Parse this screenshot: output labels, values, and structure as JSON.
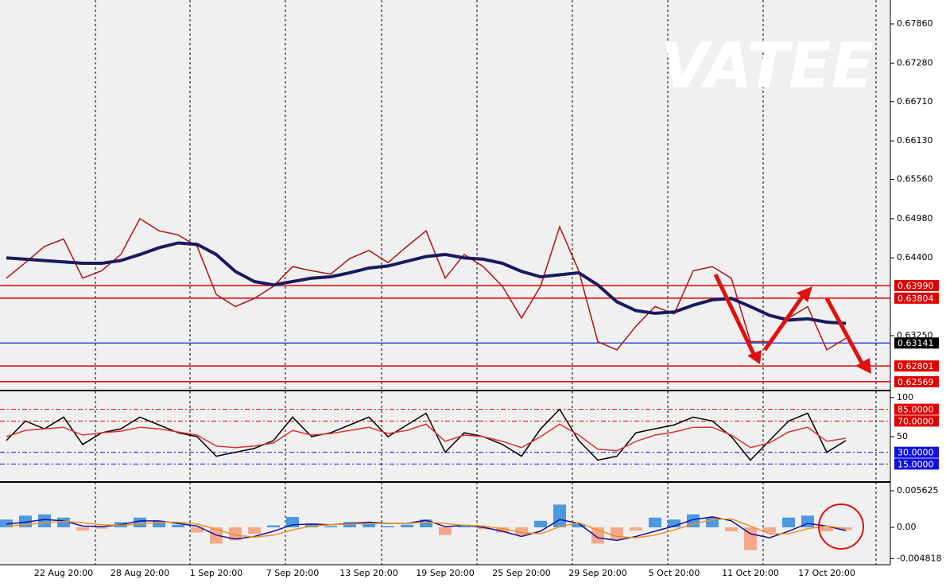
{
  "watermark": "VATEE",
  "chart_data": [
    {
      "type": "line",
      "ylim": [
        0.6245,
        0.68213
      ],
      "yticks": [
        {
          "value": 0.6786,
          "label": "0.67860"
        },
        {
          "value": 0.6728,
          "label": "0.67280"
        },
        {
          "value": 0.6671,
          "label": "0.66710"
        },
        {
          "value": 0.6613,
          "label": "0.66130"
        },
        {
          "value": 0.6556,
          "label": "0.65560"
        },
        {
          "value": 0.6498,
          "label": "0.64980"
        },
        {
          "value": 0.644,
          "label": "0.64400"
        },
        {
          "value": 0.6325,
          "label": "0.63250"
        }
      ],
      "levels": [
        {
          "value": 0.6399,
          "label": "0.63990",
          "color": "#e00000"
        },
        {
          "value": 0.63804,
          "label": "0.63804",
          "color": "#e00000"
        },
        {
          "value": 0.63141,
          "label": "0.63141",
          "color": "#3050d0"
        },
        {
          "value": 0.62801,
          "label": "0.62801",
          "color": "#e00000"
        },
        {
          "value": 0.62569,
          "label": "0.62569",
          "color": "#e00000"
        }
      ],
      "series": [
        {
          "color": "#b01010",
          "values": [
            0.641,
            0.6433,
            0.6457,
            0.6468,
            0.641,
            0.6421,
            0.6445,
            0.6498,
            0.648,
            0.6474,
            0.6457,
            0.6386,
            0.6368,
            0.638,
            0.6398,
            0.6427,
            0.6421,
            0.6416,
            0.6439,
            0.6451,
            0.6433,
            0.6457,
            0.648,
            0.641,
            0.6445,
            0.6427,
            0.6398,
            0.6351,
            0.6398,
            0.6486,
            0.6421,
            0.6316,
            0.6304,
            0.6339,
            0.6368,
            0.6357,
            0.6421,
            0.6427,
            0.641,
            0.6316,
            0.6316,
            0.6351,
            0.6368,
            0.6304,
            0.6321
          ]
        },
        {
          "color": "#1a1a60",
          "values": [
            0.644,
            0.6438,
            0.6436,
            0.6434,
            0.6432,
            0.6432,
            0.6436,
            0.6445,
            0.6455,
            0.6462,
            0.646,
            0.6445,
            0.642,
            0.6405,
            0.64,
            0.6405,
            0.641,
            0.6412,
            0.6418,
            0.6425,
            0.6428,
            0.6435,
            0.6442,
            0.6445,
            0.644,
            0.6438,
            0.6432,
            0.642,
            0.6412,
            0.6415,
            0.6418,
            0.64,
            0.6375,
            0.6362,
            0.6358,
            0.636,
            0.637,
            0.6378,
            0.638,
            0.6368,
            0.6355,
            0.6348,
            0.635,
            0.6345,
            0.6343
          ]
        }
      ]
    },
    {
      "type": "line",
      "ylim": [
        -7,
        108
      ],
      "yticks": [
        100,
        50
      ],
      "levels": [
        {
          "value": 85,
          "label": "85.0000",
          "color": "#e00000"
        },
        {
          "value": 70,
          "label": "70.0000",
          "color": "#e00000"
        },
        {
          "value": 30,
          "label": "30.0000",
          "color": "#1010e0"
        },
        {
          "value": 15,
          "label": "15.0000",
          "color": "#1010e0"
        }
      ],
      "series": [
        {
          "color": "#000000",
          "values": [
            45,
            70,
            60,
            75,
            40,
            55,
            60,
            75,
            65,
            55,
            50,
            25,
            30,
            35,
            45,
            75,
            50,
            55,
            65,
            75,
            50,
            65,
            80,
            30,
            55,
            50,
            40,
            25,
            60,
            85,
            45,
            20,
            25,
            55,
            60,
            65,
            75,
            70,
            50,
            20,
            45,
            70,
            80,
            30,
            45
          ]
        },
        {
          "color": "#e03030",
          "values": [
            50,
            58,
            60,
            62,
            52,
            55,
            57,
            62,
            60,
            56,
            52,
            38,
            36,
            38,
            42,
            58,
            52,
            54,
            58,
            62,
            54,
            58,
            66,
            44,
            52,
            50,
            44,
            36,
            50,
            66,
            52,
            34,
            32,
            44,
            52,
            56,
            62,
            62,
            52,
            36,
            42,
            56,
            62,
            44,
            48
          ]
        }
      ]
    },
    {
      "type": "macd",
      "ylim": [
        -0.00575,
        0.00685
      ],
      "yticks": [
        0.005625,
        {
          "value": 0,
          "label": "0.00"
        },
        {
          "value": -0.004818,
          "label": "-0.004818"
        }
      ],
      "categories": [
        null,
        null,
        null,
        "22 Aug 20:00",
        null,
        null,
        null,
        "28 Aug 20:00",
        null,
        null,
        null,
        "1 Sep 20:00",
        null,
        null,
        null,
        "7 Sep 20:00",
        null,
        null,
        null,
        "13 Sep 20:00",
        null,
        null,
        null,
        "19 Sep 20:00",
        null,
        null,
        null,
        "25 Sep 20:00",
        null,
        null,
        null,
        "29 Sep 20:00",
        null,
        null,
        null,
        "5 Oct 20:00",
        null,
        null,
        null,
        "11 Oct 20:00",
        null,
        null,
        null,
        "17 Oct 20:00",
        null
      ],
      "positive_color": "#3a8fe0",
      "negative_color": "#f4a080",
      "histogram": [
        0.0012,
        0.0018,
        0.002,
        0.0015,
        -0.0005,
        -0.0002,
        0.0008,
        0.0015,
        0.001,
        0.0004,
        -0.0008,
        -0.0025,
        -0.002,
        -0.001,
        0.0003,
        0.0016,
        0.0006,
        0.0002,
        0.0008,
        0.0005,
        0.0002,
        0.0004,
        0.0012,
        -0.0012,
        0.0004,
        -0.0003,
        -0.0008,
        -0.0012,
        0.001,
        0.0035,
        0.0005,
        -0.0025,
        -0.0018,
        -0.0005,
        0.0015,
        0.0012,
        0.002,
        0.0015,
        -0.0006,
        -0.0035,
        -0.0008,
        0.0015,
        0.0018,
        -0.0006,
        -0.0004
      ],
      "series": [
        {
          "color": "#1010a0",
          "values": [
            0.0005,
            0.0008,
            0.0012,
            0.001,
            0.0002,
            0.0001,
            0.0004,
            0.001,
            0.001,
            0.0006,
            0.0002,
            -0.0012,
            -0.0018,
            -0.0014,
            -0.0006,
            0.0004,
            0.0005,
            0.0004,
            0.0006,
            0.0008,
            0.0006,
            0.0006,
            0.0011,
            0.0001,
            0.0003,
            0,
            -0.0006,
            -0.0014,
            -0.0006,
            0.0012,
            0.0006,
            -0.0016,
            -0.002,
            -0.0014,
            -0.0006,
            0.0002,
            0.0012,
            0.0016,
            0.001,
            -0.001,
            -0.0016,
            -0.0006,
            0.0006,
            0.0002,
            -0.0005
          ]
        },
        {
          "color": "#f09020",
          "values": [
            0.0002,
            0.0004,
            0.0007,
            0.0009,
            0.0007,
            0.0004,
            0.0003,
            0.0005,
            0.0008,
            0.0008,
            0.0005,
            -0.0003,
            -0.0012,
            -0.0015,
            -0.0012,
            -0.0004,
            0.0002,
            0.0004,
            0.0005,
            0.0006,
            0.0006,
            0.0006,
            0.0008,
            0.0006,
            0.0003,
            0.0002,
            -0.0002,
            -0.0008,
            -0.001,
            0.0001,
            0.0007,
            -0.0004,
            -0.0014,
            -0.0016,
            -0.0012,
            -0.0004,
            0.0005,
            0.0012,
            0.0013,
            0.0002,
            -0.001,
            -0.001,
            -0.0002,
            0.0002,
            -0.0002
          ]
        }
      ]
    }
  ]
}
